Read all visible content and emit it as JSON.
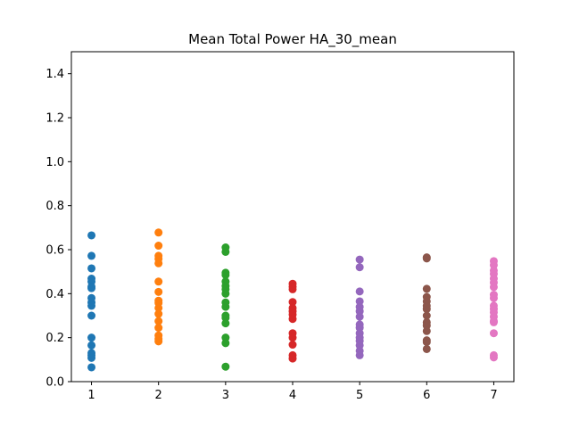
{
  "chart_data": {
    "type": "scatter",
    "title": "Mean Total Power HA_30_mean",
    "xlabel": "",
    "ylabel": "",
    "xlim": [
      0.7,
      7.3
    ],
    "ylim": [
      0.0,
      1.5
    ],
    "xticks": [
      1,
      2,
      3,
      4,
      5,
      6,
      7
    ],
    "yticks": [
      0.0,
      0.2,
      0.4,
      0.6,
      0.8,
      1.0,
      1.2,
      1.4
    ],
    "grid": false,
    "series": [
      {
        "color": "#1f77b4",
        "x": 1,
        "values": [
          0.665,
          0.572,
          0.515,
          0.468,
          0.455,
          0.432,
          0.425,
          0.38,
          0.36,
          0.345,
          0.3,
          0.2,
          0.165,
          0.13,
          0.12,
          0.108,
          0.065
        ]
      },
      {
        "color": "#ff7f0e",
        "x": 2,
        "values": [
          0.678,
          0.618,
          0.572,
          0.558,
          0.538,
          0.455,
          0.408,
          0.368,
          0.358,
          0.335,
          0.308,
          0.275,
          0.245,
          0.21,
          0.195,
          0.183
        ]
      },
      {
        "color": "#2ca02c",
        "x": 3,
        "values": [
          0.61,
          0.59,
          0.495,
          0.485,
          0.455,
          0.435,
          0.42,
          0.4,
          0.36,
          0.34,
          0.3,
          0.29,
          0.265,
          0.2,
          0.175,
          0.068
        ]
      },
      {
        "color": "#d62728",
        "x": 4,
        "values": [
          0.445,
          0.432,
          0.42,
          0.362,
          0.335,
          0.32,
          0.305,
          0.285,
          0.22,
          0.2,
          0.168,
          0.12,
          0.105
        ]
      },
      {
        "color": "#9467bd",
        "x": 5,
        "values": [
          0.555,
          0.52,
          0.41,
          0.365,
          0.34,
          0.32,
          0.295,
          0.26,
          0.245,
          0.22,
          0.2,
          0.185,
          0.165,
          0.14,
          0.12
        ]
      },
      {
        "color": "#8c564b",
        "x": 6,
        "values": [
          0.565,
          0.56,
          0.422,
          0.385,
          0.365,
          0.345,
          0.33,
          0.3,
          0.27,
          0.255,
          0.23,
          0.188,
          0.18,
          0.148
        ]
      },
      {
        "color": "#e377c2",
        "x": 7,
        "values": [
          0.548,
          0.53,
          0.505,
          0.49,
          0.468,
          0.45,
          0.43,
          0.395,
          0.38,
          0.345,
          0.33,
          0.315,
          0.295,
          0.275,
          0.27,
          0.22,
          0.12,
          0.11
        ]
      }
    ]
  }
}
